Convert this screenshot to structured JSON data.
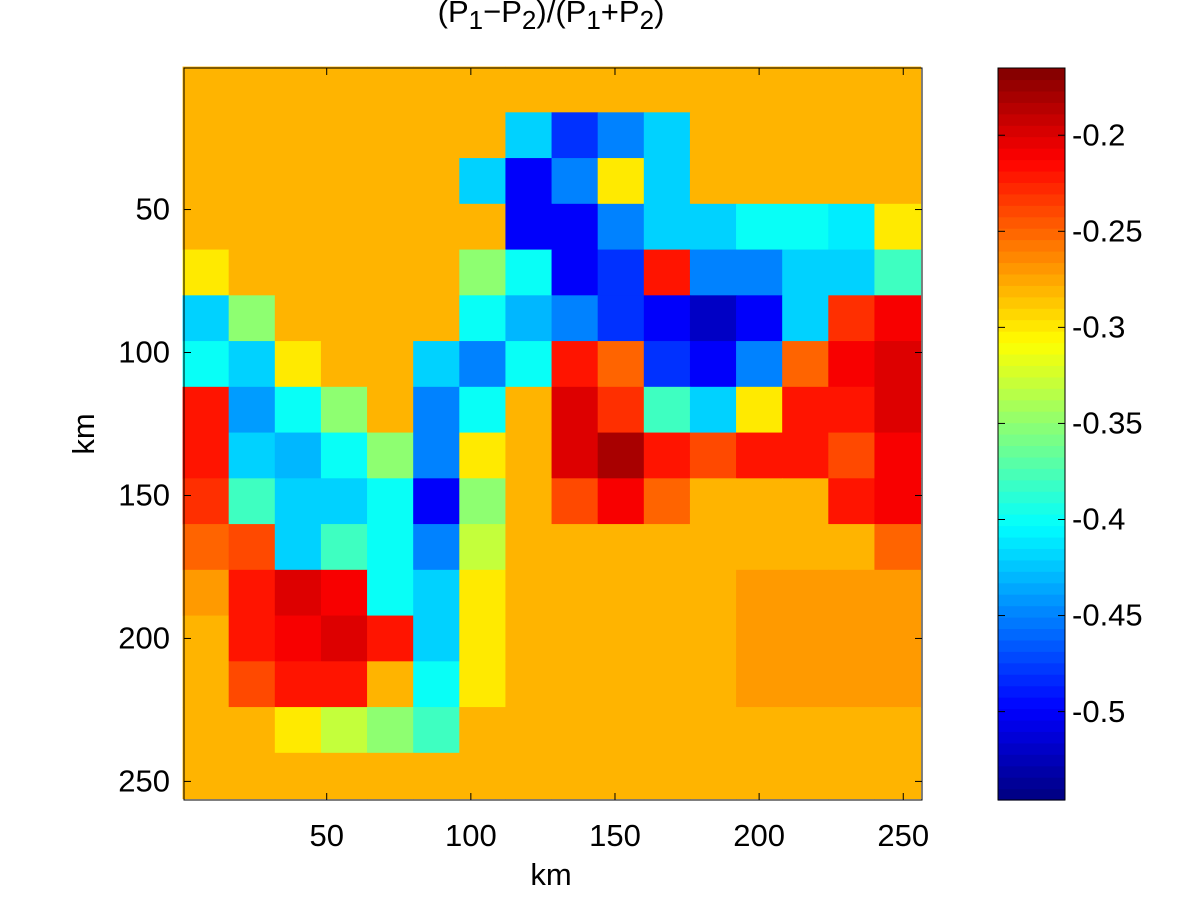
{
  "chart_data": {
    "type": "heatmap",
    "title": "(P1-P2)/(P1+P2)",
    "xlabel": "km",
    "ylabel": "km",
    "x": [
      8,
      24,
      40,
      56,
      72,
      88,
      104,
      120,
      136,
      152,
      168,
      184,
      200,
      216,
      232,
      248
    ],
    "y": [
      8,
      24,
      40,
      56,
      72,
      88,
      104,
      120,
      136,
      152,
      168,
      184,
      200,
      216,
      232,
      248
    ],
    "z": [
      [
        -0.28,
        -0.28,
        -0.28,
        -0.28,
        -0.28,
        -0.28,
        -0.28,
        -0.28,
        -0.28,
        -0.28,
        -0.28,
        -0.28,
        -0.28,
        -0.28,
        -0.28,
        -0.28
      ],
      [
        -0.28,
        -0.28,
        -0.28,
        -0.28,
        -0.28,
        -0.28,
        -0.28,
        -0.42,
        -0.48,
        -0.45,
        -0.42,
        -0.28,
        -0.28,
        -0.28,
        -0.28,
        -0.28
      ],
      [
        -0.28,
        -0.28,
        -0.28,
        -0.28,
        -0.28,
        -0.28,
        -0.42,
        -0.5,
        -0.45,
        -0.3,
        -0.42,
        -0.28,
        -0.28,
        -0.28,
        -0.28,
        -0.28
      ],
      [
        -0.28,
        -0.28,
        -0.28,
        -0.28,
        -0.28,
        -0.28,
        -0.28,
        -0.5,
        -0.5,
        -0.45,
        -0.42,
        -0.42,
        -0.4,
        -0.4,
        -0.41,
        -0.3
      ],
      [
        -0.3,
        -0.28,
        -0.28,
        -0.28,
        -0.28,
        -0.28,
        -0.35,
        -0.4,
        -0.5,
        -0.48,
        -0.22,
        -0.45,
        -0.45,
        -0.42,
        -0.42,
        -0.38
      ],
      [
        -0.42,
        -0.35,
        -0.28,
        -0.28,
        -0.28,
        -0.28,
        -0.4,
        -0.43,
        -0.45,
        -0.48,
        -0.5,
        -0.52,
        -0.5,
        -0.42,
        -0.23,
        -0.21
      ],
      [
        -0.4,
        -0.42,
        -0.3,
        -0.28,
        -0.28,
        -0.42,
        -0.45,
        -0.4,
        -0.22,
        -0.25,
        -0.48,
        -0.5,
        -0.45,
        -0.25,
        -0.21,
        -0.2
      ],
      [
        -0.22,
        -0.44,
        -0.4,
        -0.35,
        -0.28,
        -0.45,
        -0.4,
        -0.28,
        -0.2,
        -0.23,
        -0.38,
        -0.42,
        -0.3,
        -0.22,
        -0.22,
        -0.2
      ],
      [
        -0.22,
        -0.42,
        -0.43,
        -0.4,
        -0.35,
        -0.45,
        -0.3,
        -0.28,
        -0.2,
        -0.18,
        -0.22,
        -0.24,
        -0.22,
        -0.22,
        -0.24,
        -0.21
      ],
      [
        -0.23,
        -0.38,
        -0.42,
        -0.42,
        -0.4,
        -0.5,
        -0.35,
        -0.28,
        -0.24,
        -0.21,
        -0.25,
        -0.28,
        -0.28,
        -0.28,
        -0.22,
        -0.21
      ],
      [
        -0.25,
        -0.24,
        -0.42,
        -0.38,
        -0.4,
        -0.45,
        -0.33,
        -0.28,
        -0.28,
        -0.28,
        -0.28,
        -0.28,
        -0.28,
        -0.28,
        -0.28,
        -0.25
      ],
      [
        -0.27,
        -0.22,
        -0.2,
        -0.21,
        -0.4,
        -0.42,
        -0.3,
        -0.28,
        -0.28,
        -0.28,
        -0.28,
        -0.28,
        -0.27,
        -0.27,
        -0.27,
        -0.27
      ],
      [
        -0.28,
        -0.22,
        -0.21,
        -0.2,
        -0.22,
        -0.42,
        -0.3,
        -0.28,
        -0.28,
        -0.28,
        -0.28,
        -0.28,
        -0.27,
        -0.27,
        -0.27,
        -0.27
      ],
      [
        -0.28,
        -0.24,
        -0.22,
        -0.22,
        -0.28,
        -0.4,
        -0.3,
        -0.28,
        -0.28,
        -0.28,
        -0.28,
        -0.28,
        -0.27,
        -0.27,
        -0.27,
        -0.27
      ],
      [
        -0.28,
        -0.28,
        -0.3,
        -0.33,
        -0.35,
        -0.38,
        -0.28,
        -0.28,
        -0.28,
        -0.28,
        -0.28,
        -0.28,
        -0.28,
        -0.28,
        -0.28,
        -0.28
      ],
      [
        -0.28,
        -0.28,
        -0.28,
        -0.28,
        -0.28,
        -0.28,
        -0.28,
        -0.28,
        -0.28,
        -0.28,
        -0.28,
        -0.28,
        -0.28,
        -0.28,
        -0.28,
        -0.28
      ]
    ],
    "xlim": [
      0.5,
      256.5
    ],
    "ylim": [
      0.5,
      256.5
    ],
    "yreverse": true,
    "xticks": [
      50,
      100,
      150,
      200,
      250
    ],
    "yticks": [
      50,
      100,
      150,
      200,
      250
    ],
    "colormap": "jet",
    "clim": [
      -0.546,
      -0.165
    ],
    "cticks": [
      -0.5,
      -0.45,
      -0.4,
      -0.35,
      -0.3,
      -0.25,
      -0.2
    ]
  }
}
